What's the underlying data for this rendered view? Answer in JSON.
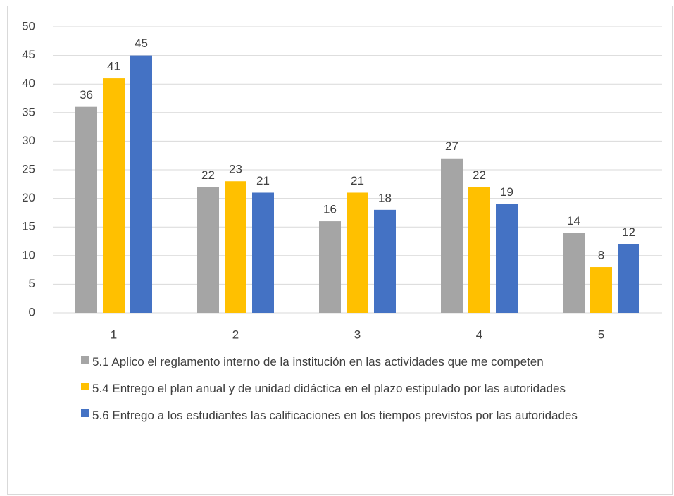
{
  "chart_data": {
    "type": "bar",
    "categories": [
      "1",
      "2",
      "3",
      "4",
      "5"
    ],
    "series": [
      {
        "name": "5.1 Aplico el reglamento interno de la institución en las actividades que me competen",
        "color": "#a5a5a5",
        "values": [
          36,
          22,
          16,
          27,
          14
        ]
      },
      {
        "name": "5.4 Entrego el plan anual y de unidad didáctica en el plazo estipulado por las autoridades",
        "color": "#ffc000",
        "values": [
          41,
          23,
          21,
          22,
          8
        ]
      },
      {
        "name": "5.6 Entrego a los estudiantes las calificaciones en los tiempos previstos por las autoridades",
        "color": "#4472c4",
        "values": [
          45,
          21,
          18,
          19,
          12
        ]
      }
    ],
    "ylim": [
      0,
      50
    ],
    "yticks": [
      0,
      5,
      10,
      15,
      20,
      25,
      30,
      35,
      40,
      45,
      50
    ],
    "grid": true,
    "legend": "bottom"
  }
}
